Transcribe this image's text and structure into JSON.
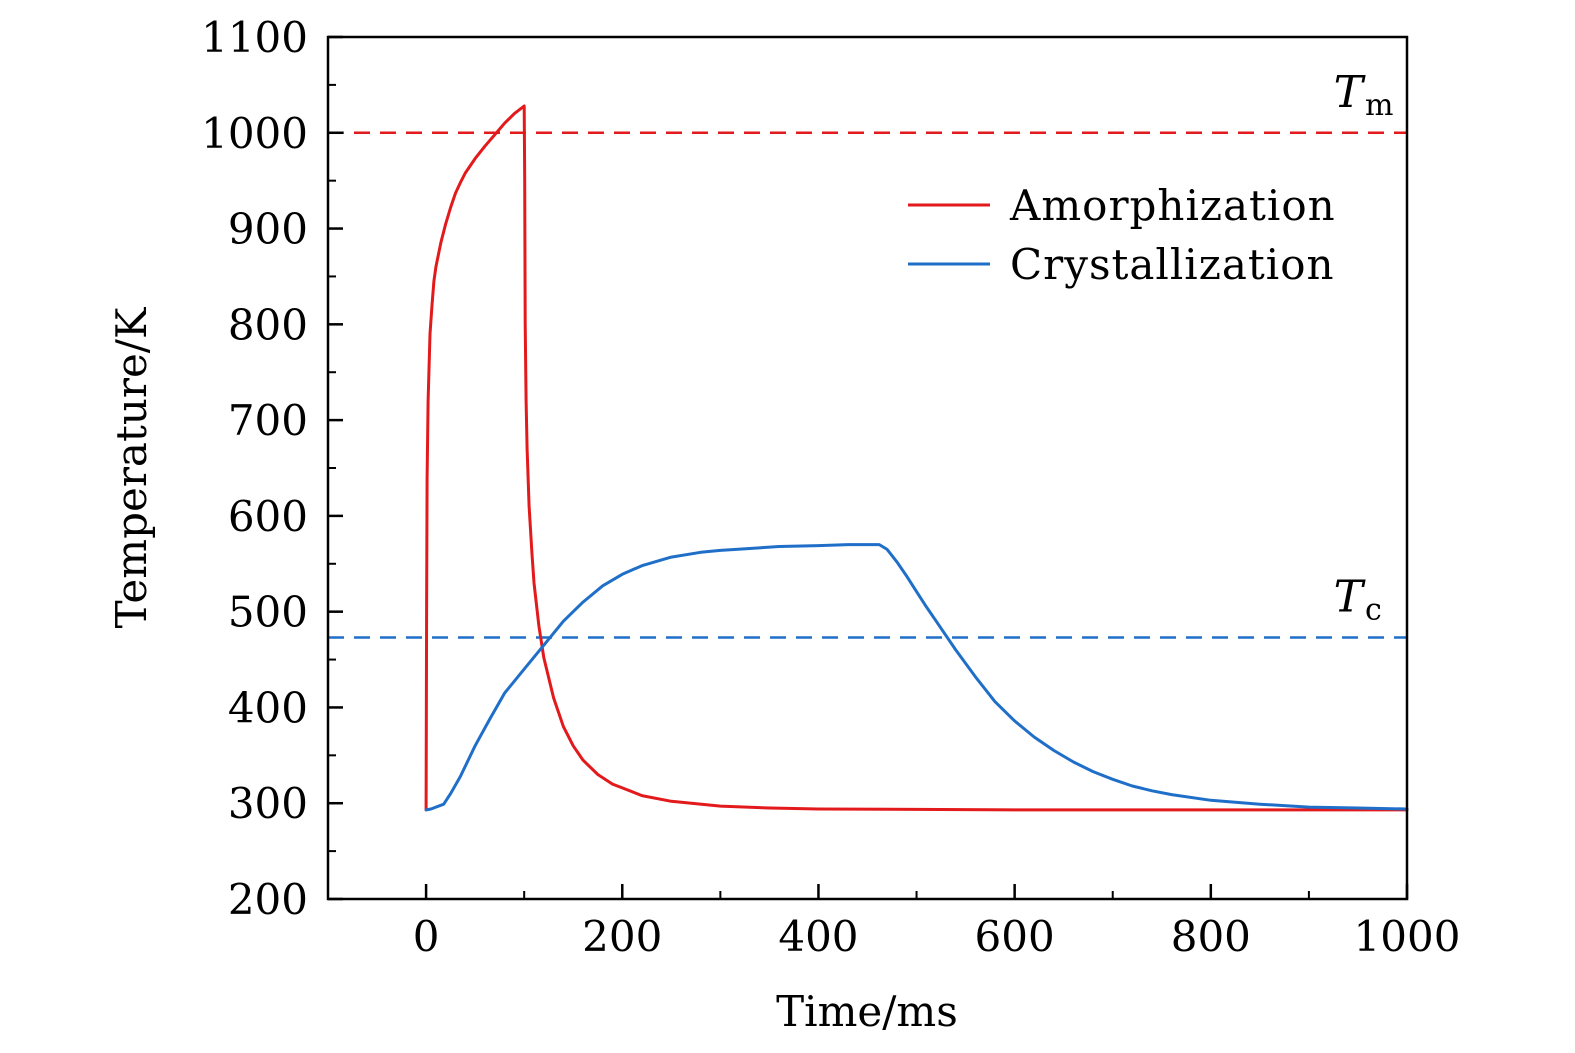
{
  "chart_data": {
    "type": "line",
    "title": "",
    "xlabel": "Time/ms",
    "ylabel": "Temperature/K",
    "xlim": [
      -100,
      1000
    ],
    "ylim": [
      200,
      1100
    ],
    "xticks": [
      0,
      200,
      400,
      600,
      800,
      1000
    ],
    "xtick_labels": [
      "0",
      "200",
      "400",
      "600",
      "800",
      "1000"
    ],
    "yticks": [
      200,
      300,
      400,
      500,
      600,
      700,
      800,
      900,
      1000,
      1100
    ],
    "ytick_labels": [
      "200",
      "300",
      "400",
      "500",
      "600",
      "700",
      "800",
      "900",
      "1000",
      "1100"
    ],
    "grid": false,
    "legend_position": "top-right",
    "series": [
      {
        "name": "Amorphization",
        "color": "#e31a1c",
        "x": [
          0,
          0.5,
          1,
          2,
          4,
          6,
          8,
          10,
          15,
          20,
          25,
          30,
          35,
          40,
          50,
          60,
          70,
          80,
          90,
          100,
          100,
          100.5,
          101,
          102,
          103,
          105,
          108,
          110,
          115,
          120,
          130,
          140,
          150,
          160,
          175,
          190,
          200,
          220,
          250,
          300,
          350,
          400,
          500,
          600,
          700,
          800,
          900,
          1000
        ],
        "values": [
          293,
          500,
          640,
          720,
          790,
          820,
          845,
          860,
          885,
          905,
          922,
          937,
          948,
          958,
          973,
          986,
          998,
          1010,
          1020,
          1028,
          1028,
          950,
          800,
          720,
          670,
          610,
          560,
          530,
          485,
          452,
          410,
          380,
          360,
          345,
          330,
          320,
          316,
          308,
          302,
          297,
          295,
          294,
          293.5,
          293,
          293,
          293,
          293,
          293
        ]
      },
      {
        "name": "Crystallization",
        "color": "#1f6fc9",
        "x": [
          0,
          5,
          10,
          18,
          25,
          35,
          50,
          65,
          80,
          100,
          120,
          140,
          160,
          180,
          200,
          220,
          250,
          280,
          300,
          330,
          360,
          400,
          430,
          455,
          462,
          470,
          480,
          490,
          500,
          510,
          520,
          540,
          560,
          580,
          600,
          620,
          640,
          660,
          680,
          700,
          720,
          740,
          760,
          800,
          850,
          900,
          950,
          1000
        ],
        "values": [
          293,
          294,
          296,
          299,
          310,
          328,
          360,
          388,
          415,
          440,
          465,
          490,
          510,
          527,
          539,
          548,
          557,
          562,
          564,
          566,
          568,
          569,
          570,
          570,
          570,
          565,
          552,
          537,
          521,
          505,
          490,
          460,
          432,
          406,
          386,
          369,
          355,
          343,
          333,
          325,
          318,
          313,
          309,
          303,
          299,
          296,
          295,
          294
        ]
      }
    ],
    "reference_lines": [
      {
        "y": 1000,
        "color": "#e31a1c",
        "style": "dashed",
        "label_main": "T",
        "label_sub": "m"
      },
      {
        "y": 473,
        "color": "#1f6fc9",
        "style": "dashed",
        "label_main": "T",
        "label_sub": "c"
      }
    ]
  }
}
